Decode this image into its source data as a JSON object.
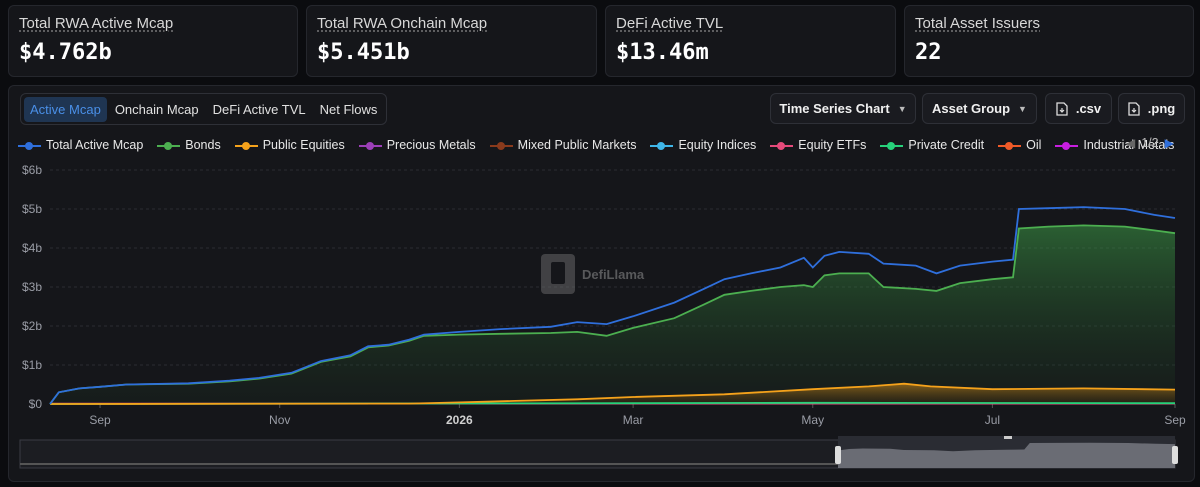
{
  "cards": [
    {
      "title": "Total RWA Active Mcap",
      "value": "$4.762b"
    },
    {
      "title": "Total RWA Onchain Mcap",
      "value": "$5.451b"
    },
    {
      "title": "DeFi Active TVL",
      "value": "$13.46m"
    },
    {
      "title": "Total Asset Issuers",
      "value": "22"
    }
  ],
  "tabs": [
    "Active Mcap",
    "Onchain Mcap",
    "DeFi Active TVL",
    "Net Flows"
  ],
  "active_tab": "Active Mcap",
  "controls": {
    "chart_type": "Time Series Chart",
    "group_by": "Asset Group",
    "csv": ".csv",
    "png": ".png"
  },
  "legend_page": "1/2",
  "watermark": "DefiLlama",
  "colors": {
    "Total Active Mcap": "#2f6fdc",
    "Bonds": "#4caf50",
    "Public Equities": "#f5a21b",
    "Precious Metals": "#9c3fb8",
    "Mixed Public Markets": "#8a3a1c",
    "Equity Indices": "#3fb6e8",
    "Equity ETFs": "#e64a7b",
    "Private Credit": "#27d17a",
    "Oil": "#f05a28",
    "Industrial Metals": "#c81ee0"
  },
  "chart_data": {
    "type": "line",
    "title": "",
    "xlabel": "",
    "ylabel": "",
    "ylim": [
      0,
      6
    ],
    "y_unit": "billion USD",
    "y_ticks": [
      "$0",
      "$1b",
      "$2b",
      "$3b",
      "$4b",
      "$5b",
      "$6b"
    ],
    "x_ticks": [
      "Sep",
      "Nov",
      "2026",
      "Mar",
      "May",
      "Jul",
      "Sep"
    ],
    "x_tick_dates": [
      "2025-09-01",
      "2025-11-01",
      "2026-01-01",
      "2026-03-01",
      "2026-05-01",
      "2026-07-01",
      "2026-09-01"
    ],
    "x_range": [
      "2025-08-15",
      "2026-09-01"
    ],
    "legend_position": "top",
    "grid": true,
    "series": [
      {
        "name": "Total Active Mcap",
        "points": [
          [
            "2025-08-15",
            0.0
          ],
          [
            "2025-08-18",
            0.3
          ],
          [
            "2025-08-25",
            0.4
          ],
          [
            "2025-09-01",
            0.44
          ],
          [
            "2025-09-10",
            0.5
          ],
          [
            "2025-10-01",
            0.53
          ],
          [
            "2025-10-15",
            0.6
          ],
          [
            "2025-10-25",
            0.67
          ],
          [
            "2025-11-05",
            0.8
          ],
          [
            "2025-11-15",
            1.1
          ],
          [
            "2025-11-25",
            1.25
          ],
          [
            "2025-12-01",
            1.48
          ],
          [
            "2025-12-08",
            1.52
          ],
          [
            "2025-12-15",
            1.65
          ],
          [
            "2025-12-20",
            1.78
          ],
          [
            "2026-01-01",
            1.85
          ],
          [
            "2026-01-15",
            1.92
          ],
          [
            "2026-02-01",
            1.98
          ],
          [
            "2026-02-10",
            2.1
          ],
          [
            "2026-02-20",
            2.05
          ],
          [
            "2026-03-01",
            2.25
          ],
          [
            "2026-03-15",
            2.6
          ],
          [
            "2026-03-25",
            2.95
          ],
          [
            "2026-04-01",
            3.2
          ],
          [
            "2026-04-10",
            3.35
          ],
          [
            "2026-04-20",
            3.5
          ],
          [
            "2026-04-28",
            3.75
          ],
          [
            "2026-05-01",
            3.5
          ],
          [
            "2026-05-05",
            3.8
          ],
          [
            "2026-05-10",
            3.9
          ],
          [
            "2026-05-20",
            3.85
          ],
          [
            "2026-05-25",
            3.6
          ],
          [
            "2026-06-05",
            3.55
          ],
          [
            "2026-06-12",
            3.35
          ],
          [
            "2026-06-20",
            3.55
          ],
          [
            "2026-07-01",
            3.65
          ],
          [
            "2026-07-08",
            3.7
          ],
          [
            "2026-07-10",
            5.0
          ],
          [
            "2026-07-20",
            5.02
          ],
          [
            "2026-08-01",
            5.05
          ],
          [
            "2026-08-15",
            5.0
          ],
          [
            "2026-08-25",
            4.85
          ],
          [
            "2026-09-01",
            4.77
          ]
        ]
      },
      {
        "name": "Bonds",
        "points": [
          [
            "2025-08-15",
            0.0
          ],
          [
            "2025-08-18",
            0.3
          ],
          [
            "2025-08-25",
            0.4
          ],
          [
            "2025-09-01",
            0.44
          ],
          [
            "2025-09-10",
            0.5
          ],
          [
            "2025-10-01",
            0.52
          ],
          [
            "2025-10-15",
            0.58
          ],
          [
            "2025-10-25",
            0.65
          ],
          [
            "2025-11-05",
            0.78
          ],
          [
            "2025-11-15",
            1.08
          ],
          [
            "2025-11-25",
            1.22
          ],
          [
            "2025-12-01",
            1.45
          ],
          [
            "2025-12-08",
            1.5
          ],
          [
            "2025-12-15",
            1.62
          ],
          [
            "2025-12-20",
            1.75
          ],
          [
            "2026-01-01",
            1.78
          ],
          [
            "2026-01-15",
            1.8
          ],
          [
            "2026-02-01",
            1.82
          ],
          [
            "2026-02-10",
            1.85
          ],
          [
            "2026-02-20",
            1.75
          ],
          [
            "2026-03-01",
            1.95
          ],
          [
            "2026-03-15",
            2.2
          ],
          [
            "2026-03-25",
            2.55
          ],
          [
            "2026-04-01",
            2.8
          ],
          [
            "2026-04-10",
            2.9
          ],
          [
            "2026-04-20",
            3.0
          ],
          [
            "2026-04-28",
            3.05
          ],
          [
            "2026-05-01",
            3.0
          ],
          [
            "2026-05-05",
            3.3
          ],
          [
            "2026-05-10",
            3.35
          ],
          [
            "2026-05-20",
            3.35
          ],
          [
            "2026-05-25",
            3.0
          ],
          [
            "2026-06-05",
            2.95
          ],
          [
            "2026-06-12",
            2.9
          ],
          [
            "2026-06-20",
            3.1
          ],
          [
            "2026-07-01",
            3.2
          ],
          [
            "2026-07-08",
            3.25
          ],
          [
            "2026-07-10",
            4.5
          ],
          [
            "2026-07-20",
            4.55
          ],
          [
            "2026-08-01",
            4.58
          ],
          [
            "2026-08-15",
            4.55
          ],
          [
            "2026-08-25",
            4.45
          ],
          [
            "2026-09-01",
            4.38
          ]
        ]
      },
      {
        "name": "Public Equities",
        "points": [
          [
            "2025-08-15",
            0.0
          ],
          [
            "2025-12-15",
            0.01
          ],
          [
            "2026-01-01",
            0.04
          ],
          [
            "2026-01-20",
            0.08
          ],
          [
            "2026-02-10",
            0.12
          ],
          [
            "2026-03-01",
            0.18
          ],
          [
            "2026-04-01",
            0.25
          ],
          [
            "2026-05-01",
            0.38
          ],
          [
            "2026-05-20",
            0.45
          ],
          [
            "2026-06-01",
            0.52
          ],
          [
            "2026-06-10",
            0.45
          ],
          [
            "2026-07-01",
            0.38
          ],
          [
            "2026-08-01",
            0.4
          ],
          [
            "2026-09-01",
            0.37
          ]
        ]
      },
      {
        "name": "Private Credit",
        "points": [
          [
            "2025-08-15",
            0.0
          ],
          [
            "2026-03-01",
            0.02
          ],
          [
            "2026-05-01",
            0.03
          ],
          [
            "2026-09-01",
            0.02
          ]
        ]
      },
      {
        "name": "Equity ETFs",
        "points": [
          [
            "2025-08-15",
            0.01
          ],
          [
            "2026-01-01",
            0.01
          ],
          [
            "2026-09-01",
            0.01
          ]
        ]
      }
    ]
  }
}
